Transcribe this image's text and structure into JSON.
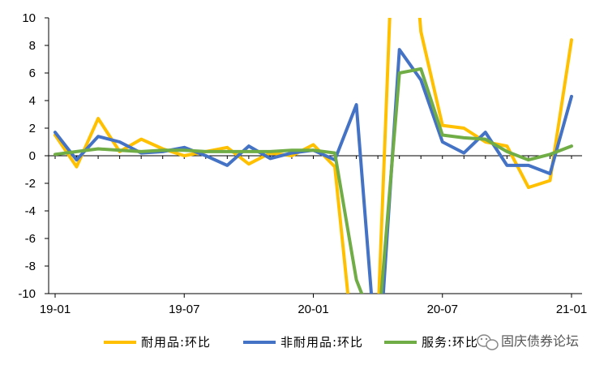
{
  "chart_data": {
    "type": "line",
    "x": [
      "19-01",
      "19-02",
      "19-03",
      "19-04",
      "19-05",
      "19-06",
      "19-07",
      "19-08",
      "19-09",
      "19-10",
      "19-11",
      "19-12",
      "20-01",
      "20-02",
      "20-03",
      "20-04",
      "20-05",
      "20-06",
      "20-07",
      "20-08",
      "20-09",
      "20-10",
      "20-11",
      "20-12",
      "21-01"
    ],
    "x_tick_labels": [
      "19-01",
      "19-07",
      "20-01",
      "20-07",
      "21-01"
    ],
    "ylim": [
      -10,
      10
    ],
    "y_ticks": [
      -10,
      -8,
      -6,
      -4,
      -2,
      0,
      2,
      4,
      6,
      8,
      10
    ],
    "grid": false,
    "legend_position": "bottom",
    "series": [
      {
        "name": "耐用品:环比",
        "color": "#FFC000",
        "values": [
          1.5,
          -0.8,
          2.7,
          0.3,
          1.2,
          0.5,
          0.0,
          0.3,
          0.6,
          -0.6,
          0.2,
          0.0,
          0.8,
          -0.8,
          -16.0,
          -12.0,
          28.0,
          9.0,
          2.2,
          2.0,
          1.0,
          0.7,
          -2.3,
          -1.8,
          8.4
        ]
      },
      {
        "name": "非耐用品:环比",
        "color": "#4472C4",
        "values": [
          1.7,
          -0.3,
          1.4,
          1.0,
          0.2,
          0.3,
          0.6,
          0.0,
          -0.7,
          0.7,
          -0.2,
          0.2,
          0.4,
          -0.3,
          3.7,
          -16.0,
          7.7,
          5.5,
          1.0,
          0.2,
          1.7,
          -0.7,
          -0.7,
          -1.3,
          4.3
        ]
      },
      {
        "name": "服务:环比",
        "color": "#70AD47",
        "values": [
          0.1,
          0.3,
          0.5,
          0.4,
          0.3,
          0.4,
          0.4,
          0.3,
          0.3,
          0.3,
          0.3,
          0.4,
          0.4,
          0.2,
          -9.0,
          -13.0,
          6.0,
          6.3,
          1.5,
          1.3,
          1.2,
          0.3,
          -0.3,
          0.1,
          0.7
        ]
      }
    ]
  },
  "watermark": {
    "text": "固庆债券论坛",
    "icon": "wechat-icon"
  }
}
